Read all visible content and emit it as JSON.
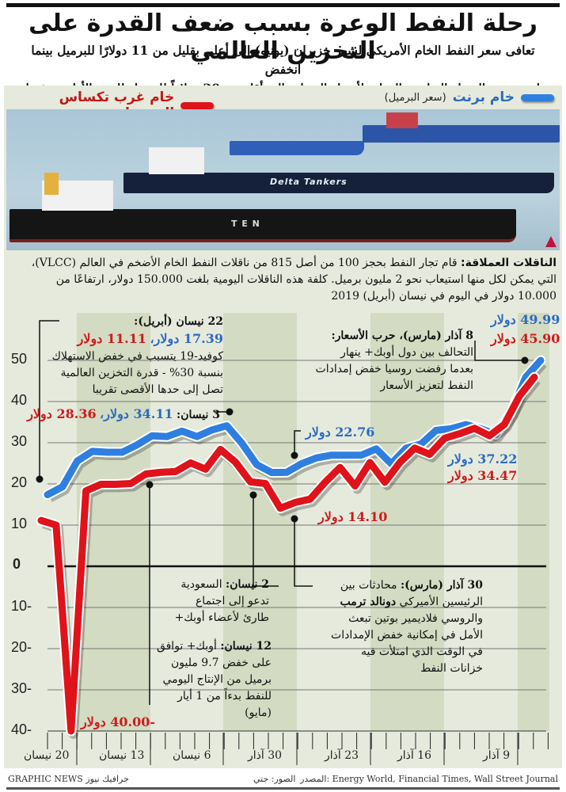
{
  "header": {
    "title": "رحلة النفط الوعرة بسبب ضعف القدرة على التخزين العالمي",
    "subtitle_line1": "تعافى سعر النفط الخام الأمريكي لشهر حزيران (يونيو) إلى أعلى بقليل من 11 دولارًا للبرميل بينما انخفض",
    "subtitle_line2": "خام برنت - المعيار القياسي الدولي لأسعار النفط - إلى أقل من 20 دولاراً للبرميل للمرة الأولى منذ عام 1999"
  },
  "legend": {
    "brent_label": "خام برنت",
    "brent_unit": "(سعر البرميل)",
    "wti_label": "خام غرب تكساس الوسيط",
    "brent_color": "#2f7fe0",
    "wti_color": "#e0121a"
  },
  "photo": {
    "ship_label_1": "Delta Tankers",
    "ship_label_2": "T   E   N"
  },
  "description": {
    "heading": "الناقلات العملاقة:",
    "text": " قام تجار النفط بحجز 100 من أصل 815 من ناقلات النفط الخام الأضخم في العالم (VLCC)، التي يمكن لكل منها استيعاب نحو 2 مليون برميل. كلفة هذه الناقلات اليومية بلغت 150.000 دولار، ارتفاعًا من 10.000 دولار في اليوم في نيسان (أبريل) 2019"
  },
  "annotations": {
    "apr22": {
      "heading": "22 نيسان (أبريل):",
      "brent": "17.39 دولار،",
      "wti": "11.11 دولار",
      "text": "كوفيد-19 يتسبب في خفض الاستهلاك بنسبة 30% - قدرة التخزين العالمية تصل إلى حدها الأقصى تقريبا"
    },
    "apr3": {
      "heading": "3 نيسان:",
      "brent": "34.11 دولار،",
      "wti": "28.36 دولار"
    },
    "mar8": {
      "heading": "8 آذار (مارس)، حرب الأسعار:",
      "text": "التحالف بين دول أوبك+ ينهار بعدما رفضت روسيا خفض إمدادات النفط لتعزيز الأسعار"
    },
    "apr2": {
      "heading": "2 نيسان:",
      "text": "السعودية تدعو إلى اجتماع طارئ لأعضاء أوبك+"
    },
    "apr12": {
      "heading": "12 نيسان:",
      "text": "أوبك+ توافق على خفض 9.7 مليون برميل من الإنتاج اليومي للنفط بدءاً من 1 أيار (مايو)"
    },
    "mar30": {
      "heading": "30 آذار (مارس):",
      "text1": "محادثات بين الرئيسين الأميركي ",
      "bold": "دونالد ترمب",
      "text2": " والروسي فلاديمير بوتين تبعث الأمل في إمكانية خفض الإمدادات في الوقت الذي امتلأت فيه خزانات النفط"
    }
  },
  "value_labels": {
    "brent_start": "49.99 دولار",
    "wti_start": "45.90 دولار",
    "brent_low": "22.76 دولار",
    "wti_low": "14.10 دولار",
    "brent_mar9": "37.22 دولار",
    "wti_mar9": "34.47 دولار",
    "wti_min": "-40.00 دولار"
  },
  "chart_data": {
    "type": "line",
    "title": "رحلة النفط الوعرة بسبب ضعف القدرة على التخزين العالمي",
    "xlabel": "",
    "ylabel": "سعر البرميل (دولار)",
    "ylim": [
      -40,
      50
    ],
    "yticks": [
      50,
      40,
      30,
      20,
      10,
      0,
      -10,
      -20,
      -30,
      -40
    ],
    "ytick_labels": [
      "50",
      "40",
      "30",
      "20",
      "10",
      "0",
      "-10",
      "-20",
      "-30",
      "-40"
    ],
    "xtick_labels": [
      "20 نيسان",
      "13 نيسان",
      "6 نيسان",
      "30 آذار",
      "23 آذار",
      "16 آذار",
      "9 آذار"
    ],
    "x_direction": "right-to-left (time flows from right: early March, to left: late April)",
    "grid": true,
    "legend_position": "top",
    "x": [
      "Apr22",
      "Apr21",
      "Apr20",
      "Apr17",
      "Apr16",
      "Apr15",
      "Apr14",
      "Apr13",
      "Apr9",
      "Apr8",
      "Apr7",
      "Apr6",
      "Apr3",
      "Apr2",
      "Apr1",
      "Mar31",
      "Mar30",
      "Mar27",
      "Mar26",
      "Mar25",
      "Mar24",
      "Mar23",
      "Mar20",
      "Mar19",
      "Mar18",
      "Mar17",
      "Mar16",
      "Mar13",
      "Mar12",
      "Mar11",
      "Mar10",
      "Mar9",
      "Mar6",
      "Mar5"
    ],
    "series": [
      {
        "name": "خام برنت",
        "color": "#2f7fe0",
        "values": [
          17.39,
          19.3,
          25.6,
          27.9,
          27.7,
          27.7,
          29.5,
          31.7,
          31.5,
          32.8,
          31.5,
          33.1,
          34.11,
          29.9,
          24.7,
          22.76,
          22.8,
          24.9,
          26.3,
          26.98,
          26.98,
          27.0,
          28.5,
          24.9,
          28.7,
          29.7,
          33.0,
          33.4,
          34.4,
          33.4,
          32.0,
          37.22,
          45.9,
          49.99
        ]
      },
      {
        "name": "خام غرب تكساس الوسيط",
        "color": "#e0121a",
        "values": [
          11.11,
          10.0,
          -40.0,
          18.3,
          19.9,
          19.9,
          20.1,
          22.4,
          22.8,
          23.0,
          25.1,
          23.6,
          28.36,
          25.3,
          20.5,
          20.1,
          14.1,
          15.5,
          16.3,
          20.4,
          24.0,
          19.5,
          25.2,
          20.4,
          25.2,
          28.7,
          27.2,
          31.1,
          32.2,
          33.5,
          31.7,
          34.47,
          41.3,
          45.9
        ]
      }
    ],
    "annotations": [
      "22 نيسان: 17.39 / 11.11",
      "3 نيسان: 34.11 / 28.36",
      "8 آذار: حرب الأسعار",
      "2 نيسان",
      "12 نيسان",
      "30 آذار"
    ]
  },
  "footer": {
    "source": "المصدر: Energy World, Financial Times, Wall Street Journal",
    "photos": "الصور: جتي",
    "brand": "GRAPHIC NEWS جرافيك نيوز"
  }
}
